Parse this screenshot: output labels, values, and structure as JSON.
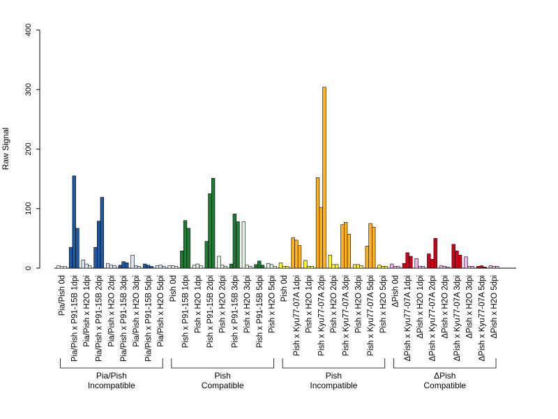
{
  "chart_data": {
    "type": "bar",
    "ylabel": "Raw Signal",
    "ylim": [
      0,
      400
    ],
    "yticks": [
      0,
      100,
      200,
      300,
      400
    ],
    "grid": false,
    "bars_per_category": 3,
    "categories": [
      {
        "label": "Pia/Pish 0d",
        "values": [
          4,
          3,
          3
        ],
        "color": "#ffffff"
      },
      {
        "label": "Pia/Pish x P91-15B 1dpi",
        "values": [
          35,
          155,
          67
        ],
        "color": "#1f5aa0"
      },
      {
        "label": "Pia/Pish x H2O 1dpi",
        "values": [
          14,
          7,
          4
        ],
        "color": "#dde6f6"
      },
      {
        "label": "Pia/Pish x P91-15B 2dpi",
        "values": [
          35,
          79,
          119
        ],
        "color": "#1f5aa0"
      },
      {
        "label": "Pia/Pish x H2O 2dpi",
        "values": [
          8,
          5,
          4
        ],
        "color": "#dde6f6"
      },
      {
        "label": "Pia/Pish x P91-15B 3dpi",
        "values": [
          5,
          11,
          9
        ],
        "color": "#1f5aa0"
      },
      {
        "label": "Pia/Pish x H2O 3dpi",
        "values": [
          22,
          4,
          3
        ],
        "color": "#dde6f6"
      },
      {
        "label": "Pia/Pish x P91-15B 5dpi",
        "values": [
          7,
          5,
          3
        ],
        "color": "#1f5aa0"
      },
      {
        "label": "Pia/Pish x H2O 5dpi",
        "values": [
          4,
          5,
          3
        ],
        "color": "#dde6f6"
      },
      {
        "label": "Pish 0d",
        "values": [
          4,
          4,
          3
        ],
        "color": "#ffffff"
      },
      {
        "label": "Pish x P91-15B 1dpi",
        "values": [
          29,
          80,
          67
        ],
        "color": "#217a35"
      },
      {
        "label": "Pish x H2O 1dpi",
        "values": [
          5,
          7,
          4
        ],
        "color": "#e4f4e4"
      },
      {
        "label": "Pish x P91-15B 2dpi",
        "values": [
          45,
          125,
          151
        ],
        "color": "#217a35"
      },
      {
        "label": "Pish x H2O 2dpi",
        "values": [
          20,
          5,
          3
        ],
        "color": "#e4f4e4"
      },
      {
        "label": "Pish x P91-15B 3dpi",
        "values": [
          7,
          91,
          78
        ],
        "color": "#217a35"
      },
      {
        "label": "Pish x H2O 3dpi",
        "values": [
          78,
          5,
          3
        ],
        "color": "#e4f4e4"
      },
      {
        "label": "Pish x P91-15B 5dpi",
        "values": [
          6,
          12,
          5
        ],
        "color": "#217a35"
      },
      {
        "label": "Pish x H2O 5dpi",
        "values": [
          8,
          6,
          3
        ],
        "color": "#e4f4e4"
      },
      {
        "label": "Pish 0d",
        "values": [
          9,
          3,
          3
        ],
        "color": "#fffb22"
      },
      {
        "label": "Pish x Kyu77-07A 1dpi",
        "values": [
          51,
          47,
          38
        ],
        "color": "#ffb21a"
      },
      {
        "label": "Pish x H2O 1dpi",
        "values": [
          13,
          3,
          3
        ],
        "color": "#fffb22"
      },
      {
        "label": "Pish x Kyu77-07A 2dpi",
        "values": [
          152,
          102,
          304
        ],
        "color": "#ffb21a"
      },
      {
        "label": "Pish x H2O 2dpi",
        "values": [
          22,
          6,
          6
        ],
        "color": "#fffb22"
      },
      {
        "label": "Pish x Kyu77-07A 3dpi",
        "values": [
          73,
          77,
          57
        ],
        "color": "#ffb21a"
      },
      {
        "label": "Pish x H2O 3dpi",
        "values": [
          6,
          6,
          4
        ],
        "color": "#fffb22"
      },
      {
        "label": "Pish x Kyu77-07A 5dpi",
        "values": [
          37,
          75,
          69
        ],
        "color": "#ffb21a"
      },
      {
        "label": "Pish x H2O 5dpi",
        "values": [
          5,
          3,
          3
        ],
        "color": "#fffb22"
      },
      {
        "label": "ΔPish 0d",
        "values": [
          7,
          3,
          3
        ],
        "color": "#f1b3ec"
      },
      {
        "label": "ΔPish x Kyu77-07A 1dpi",
        "values": [
          8,
          26,
          20
        ],
        "color": "#d0021b"
      },
      {
        "label": "ΔPish x H2O 1dpi",
        "values": [
          16,
          3,
          3
        ],
        "color": "#f1b3ec"
      },
      {
        "label": "ΔPish x Kyu77-07A 2dpi",
        "values": [
          24,
          15,
          50
        ],
        "color": "#d0021b"
      },
      {
        "label": "ΔPish x H2O 2dpi",
        "values": [
          4,
          3,
          2
        ],
        "color": "#f1b3ec"
      },
      {
        "label": "ΔPish x Kyu77-07A 3dpi",
        "values": [
          40,
          29,
          22
        ],
        "color": "#d0021b"
      },
      {
        "label": "ΔPish x H2O 3dpi",
        "values": [
          19,
          3,
          3
        ],
        "color": "#f1b3ec"
      },
      {
        "label": "ΔPish x Kyu77-07A 5dpi",
        "values": [
          3,
          4,
          2
        ],
        "color": "#d0021b"
      },
      {
        "label": "ΔPish x H2O 5dpi",
        "values": [
          4,
          3,
          3
        ],
        "color": "#f1b3ec"
      }
    ],
    "groups": [
      {
        "label": "Pia/Pish\nIncompatible",
        "first": 0,
        "last": 8
      },
      {
        "label": "Pish\nCompatible",
        "first": 9,
        "last": 17
      },
      {
        "label": "Pish\nIncompatible",
        "first": 18,
        "last": 26
      },
      {
        "label": "ΔPish\nCompatible",
        "first": 27,
        "last": 35
      }
    ]
  }
}
